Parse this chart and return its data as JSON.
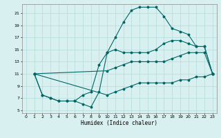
{
  "title": "",
  "xlabel": "Humidex (Indice chaleur)",
  "bg_color": "#d8f0f0",
  "grid_color": "#b8dede",
  "line_color": "#006666",
  "xlim": [
    -0.5,
    23.5
  ],
  "ylim": [
    4.5,
    22.5
  ],
  "yticks": [
    5,
    7,
    9,
    11,
    13,
    15,
    17,
    19,
    21
  ],
  "xticks": [
    0,
    1,
    2,
    3,
    4,
    5,
    6,
    7,
    8,
    9,
    10,
    11,
    12,
    13,
    14,
    15,
    16,
    17,
    18,
    19,
    20,
    21,
    22,
    23
  ],
  "line1_x": [
    1,
    2,
    3,
    4,
    5,
    6,
    7,
    8,
    9,
    10,
    11,
    12,
    13,
    14,
    15,
    16,
    17,
    18,
    19,
    20,
    21,
    22,
    23
  ],
  "line1_y": [
    11,
    7.5,
    7,
    6.5,
    6.5,
    6.5,
    6,
    5.5,
    8,
    14.5,
    17,
    19.5,
    21.5,
    22,
    22,
    22,
    20.5,
    18.5,
    18,
    17.5,
    15.5,
    15.5,
    11
  ],
  "line2_x": [
    1,
    2,
    3,
    4,
    5,
    6,
    7,
    8,
    9,
    10,
    11,
    12,
    13,
    14,
    15,
    16,
    17,
    18,
    19,
    20,
    21,
    22,
    23
  ],
  "line2_y": [
    11,
    7.5,
    7,
    6.5,
    6.5,
    6.5,
    7.5,
    8,
    12.5,
    14.5,
    15,
    14.5,
    14.5,
    14.5,
    14.5,
    15,
    16,
    16.5,
    16.5,
    16,
    15.5,
    15.5,
    11
  ],
  "line3_x": [
    1,
    10,
    11,
    12,
    13,
    14,
    15,
    16,
    17,
    18,
    19,
    20,
    21,
    22,
    23
  ],
  "line3_y": [
    11,
    11.5,
    12,
    12.5,
    13,
    13,
    13,
    13,
    13,
    13.5,
    14,
    14.5,
    14.5,
    14.5,
    11
  ],
  "line4_x": [
    1,
    10,
    11,
    12,
    13,
    14,
    15,
    16,
    17,
    18,
    19,
    20,
    21,
    22,
    23
  ],
  "line4_y": [
    11,
    7.5,
    8,
    8.5,
    9,
    9.5,
    9.5,
    9.5,
    9.5,
    9.5,
    10,
    10,
    10.5,
    10.5,
    11
  ]
}
